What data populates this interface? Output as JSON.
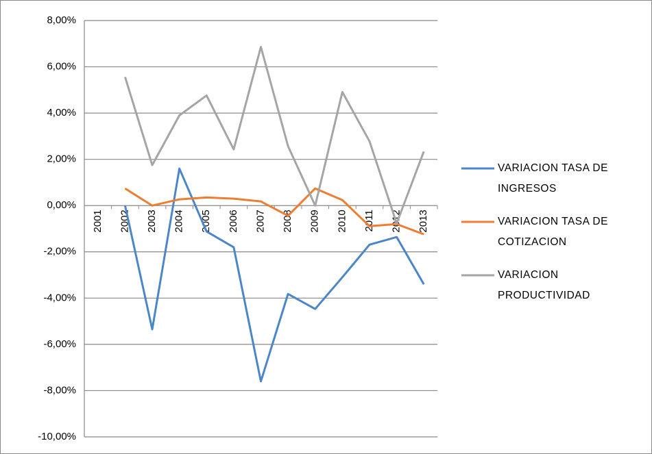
{
  "chart_data": {
    "type": "line",
    "categories": [
      "2001",
      "2002",
      "2003",
      "2004",
      "2005",
      "2006",
      "2007",
      "2008",
      "2009",
      "2010",
      "2011",
      "2012",
      "2013"
    ],
    "series": [
      {
        "name": "VARIACION TASA DE INGRESOS",
        "color": "#4a86c8",
        "values": [
          null,
          0,
          -5.35,
          1.6,
          -1.12,
          -1.8,
          -7.6,
          -3.82,
          -4.47,
          -3.1,
          -1.69,
          -1.36,
          -3.4
        ]
      },
      {
        "name": "VARIACION TASA DE COTIZACION",
        "color": "#ed7d31",
        "values": [
          null,
          0.74,
          0,
          0.27,
          0.35,
          0.3,
          0.18,
          -0.44,
          0.74,
          0.24,
          -0.89,
          -0.8,
          -1.24
        ]
      },
      {
        "name": "VARIACION PRODUCTIVIDAD",
        "color": "#a5a5a5",
        "values": [
          null,
          5.56,
          1.75,
          3.9,
          4.76,
          2.43,
          6.86,
          2.57,
          0,
          4.91,
          2.78,
          -0.77,
          2.34
        ]
      }
    ],
    "ylim": [
      -10,
      8
    ],
    "yticks": [
      {
        "value": -10,
        "label": "-10,00%"
      },
      {
        "value": -8,
        "label": "-8,00%"
      },
      {
        "value": -6,
        "label": "-6,00%"
      },
      {
        "value": -4,
        "label": "-4,00%"
      },
      {
        "value": -2,
        "label": "-2,00%"
      },
      {
        "value": 0,
        "label": "0,00%"
      },
      {
        "value": 2,
        "label": "2,00%"
      },
      {
        "value": 4,
        "label": "4,00%"
      },
      {
        "value": 6,
        "label": "6,00%"
      },
      {
        "value": 8,
        "label": "8,00%"
      }
    ],
    "grid": true,
    "legend": "right"
  }
}
